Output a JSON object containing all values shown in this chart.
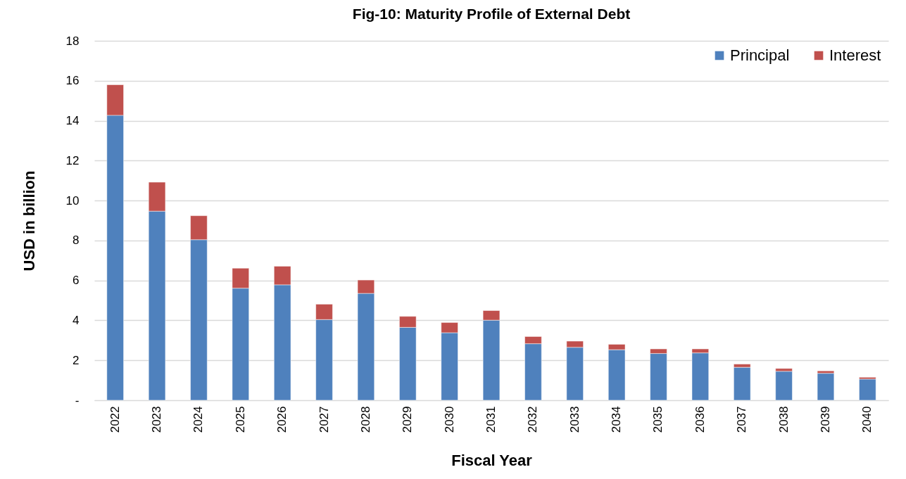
{
  "chart_data": {
    "type": "bar",
    "title": "Fig-10: Maturity Profile of External Debt",
    "xlabel": "Fiscal Year",
    "ylabel": "USD in billion",
    "categories": [
      "2022",
      "2023",
      "2024",
      "2025",
      "2026",
      "2027",
      "2028",
      "2029",
      "2030",
      "2031",
      "2032",
      "2033",
      "2034",
      "2035",
      "2036",
      "2037",
      "2038",
      "2039",
      "2040"
    ],
    "stacked": true,
    "series": [
      {
        "name": "Principal",
        "color": "#4f81bd",
        "values": [
          14.27,
          9.47,
          8.04,
          5.61,
          5.78,
          4.04,
          5.35,
          3.65,
          3.38,
          4.01,
          2.83,
          2.65,
          2.53,
          2.34,
          2.37,
          1.65,
          1.45,
          1.35,
          1.06
        ]
      },
      {
        "name": "Interest",
        "color": "#c0504d",
        "values": [
          1.53,
          1.45,
          1.2,
          1.0,
          0.93,
          0.77,
          0.67,
          0.55,
          0.51,
          0.48,
          0.36,
          0.31,
          0.27,
          0.23,
          0.2,
          0.16,
          0.14,
          0.12,
          0.09
        ]
      }
    ],
    "ylim": [
      0,
      18
    ],
    "yticks": [
      {
        "value": 0,
        "label": "-"
      },
      2,
      4,
      6,
      8,
      10,
      12,
      14,
      16,
      18
    ],
    "grid": "y",
    "legend": "top right"
  }
}
